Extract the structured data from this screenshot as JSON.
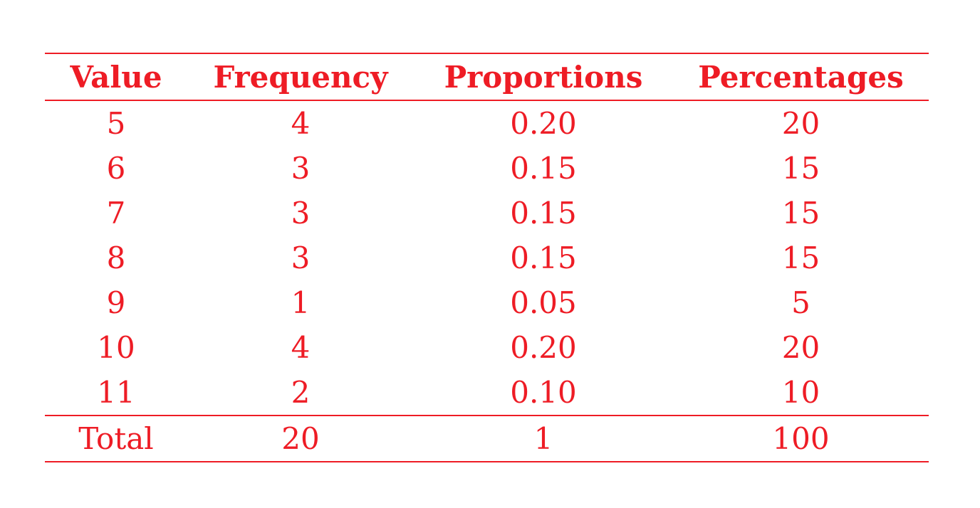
{
  "table": {
    "headers": [
      "Value",
      "Frequency",
      "Proportions",
      "Percentages"
    ],
    "rows": [
      [
        "5",
        "4",
        "0.20",
        "20"
      ],
      [
        "6",
        "3",
        "0.15",
        "15"
      ],
      [
        "7",
        "3",
        "0.15",
        "15"
      ],
      [
        "8",
        "3",
        "0.15",
        "15"
      ],
      [
        "9",
        "1",
        "0.05",
        "5"
      ],
      [
        "10",
        "4",
        "0.20",
        "20"
      ],
      [
        "11",
        "2",
        "0.10",
        "10"
      ]
    ],
    "total": [
      "Total",
      "20",
      "1",
      "100"
    ]
  },
  "colors": {
    "text": "#ee1c25",
    "rules": "#ee1c25",
    "background": "#ffffff"
  }
}
